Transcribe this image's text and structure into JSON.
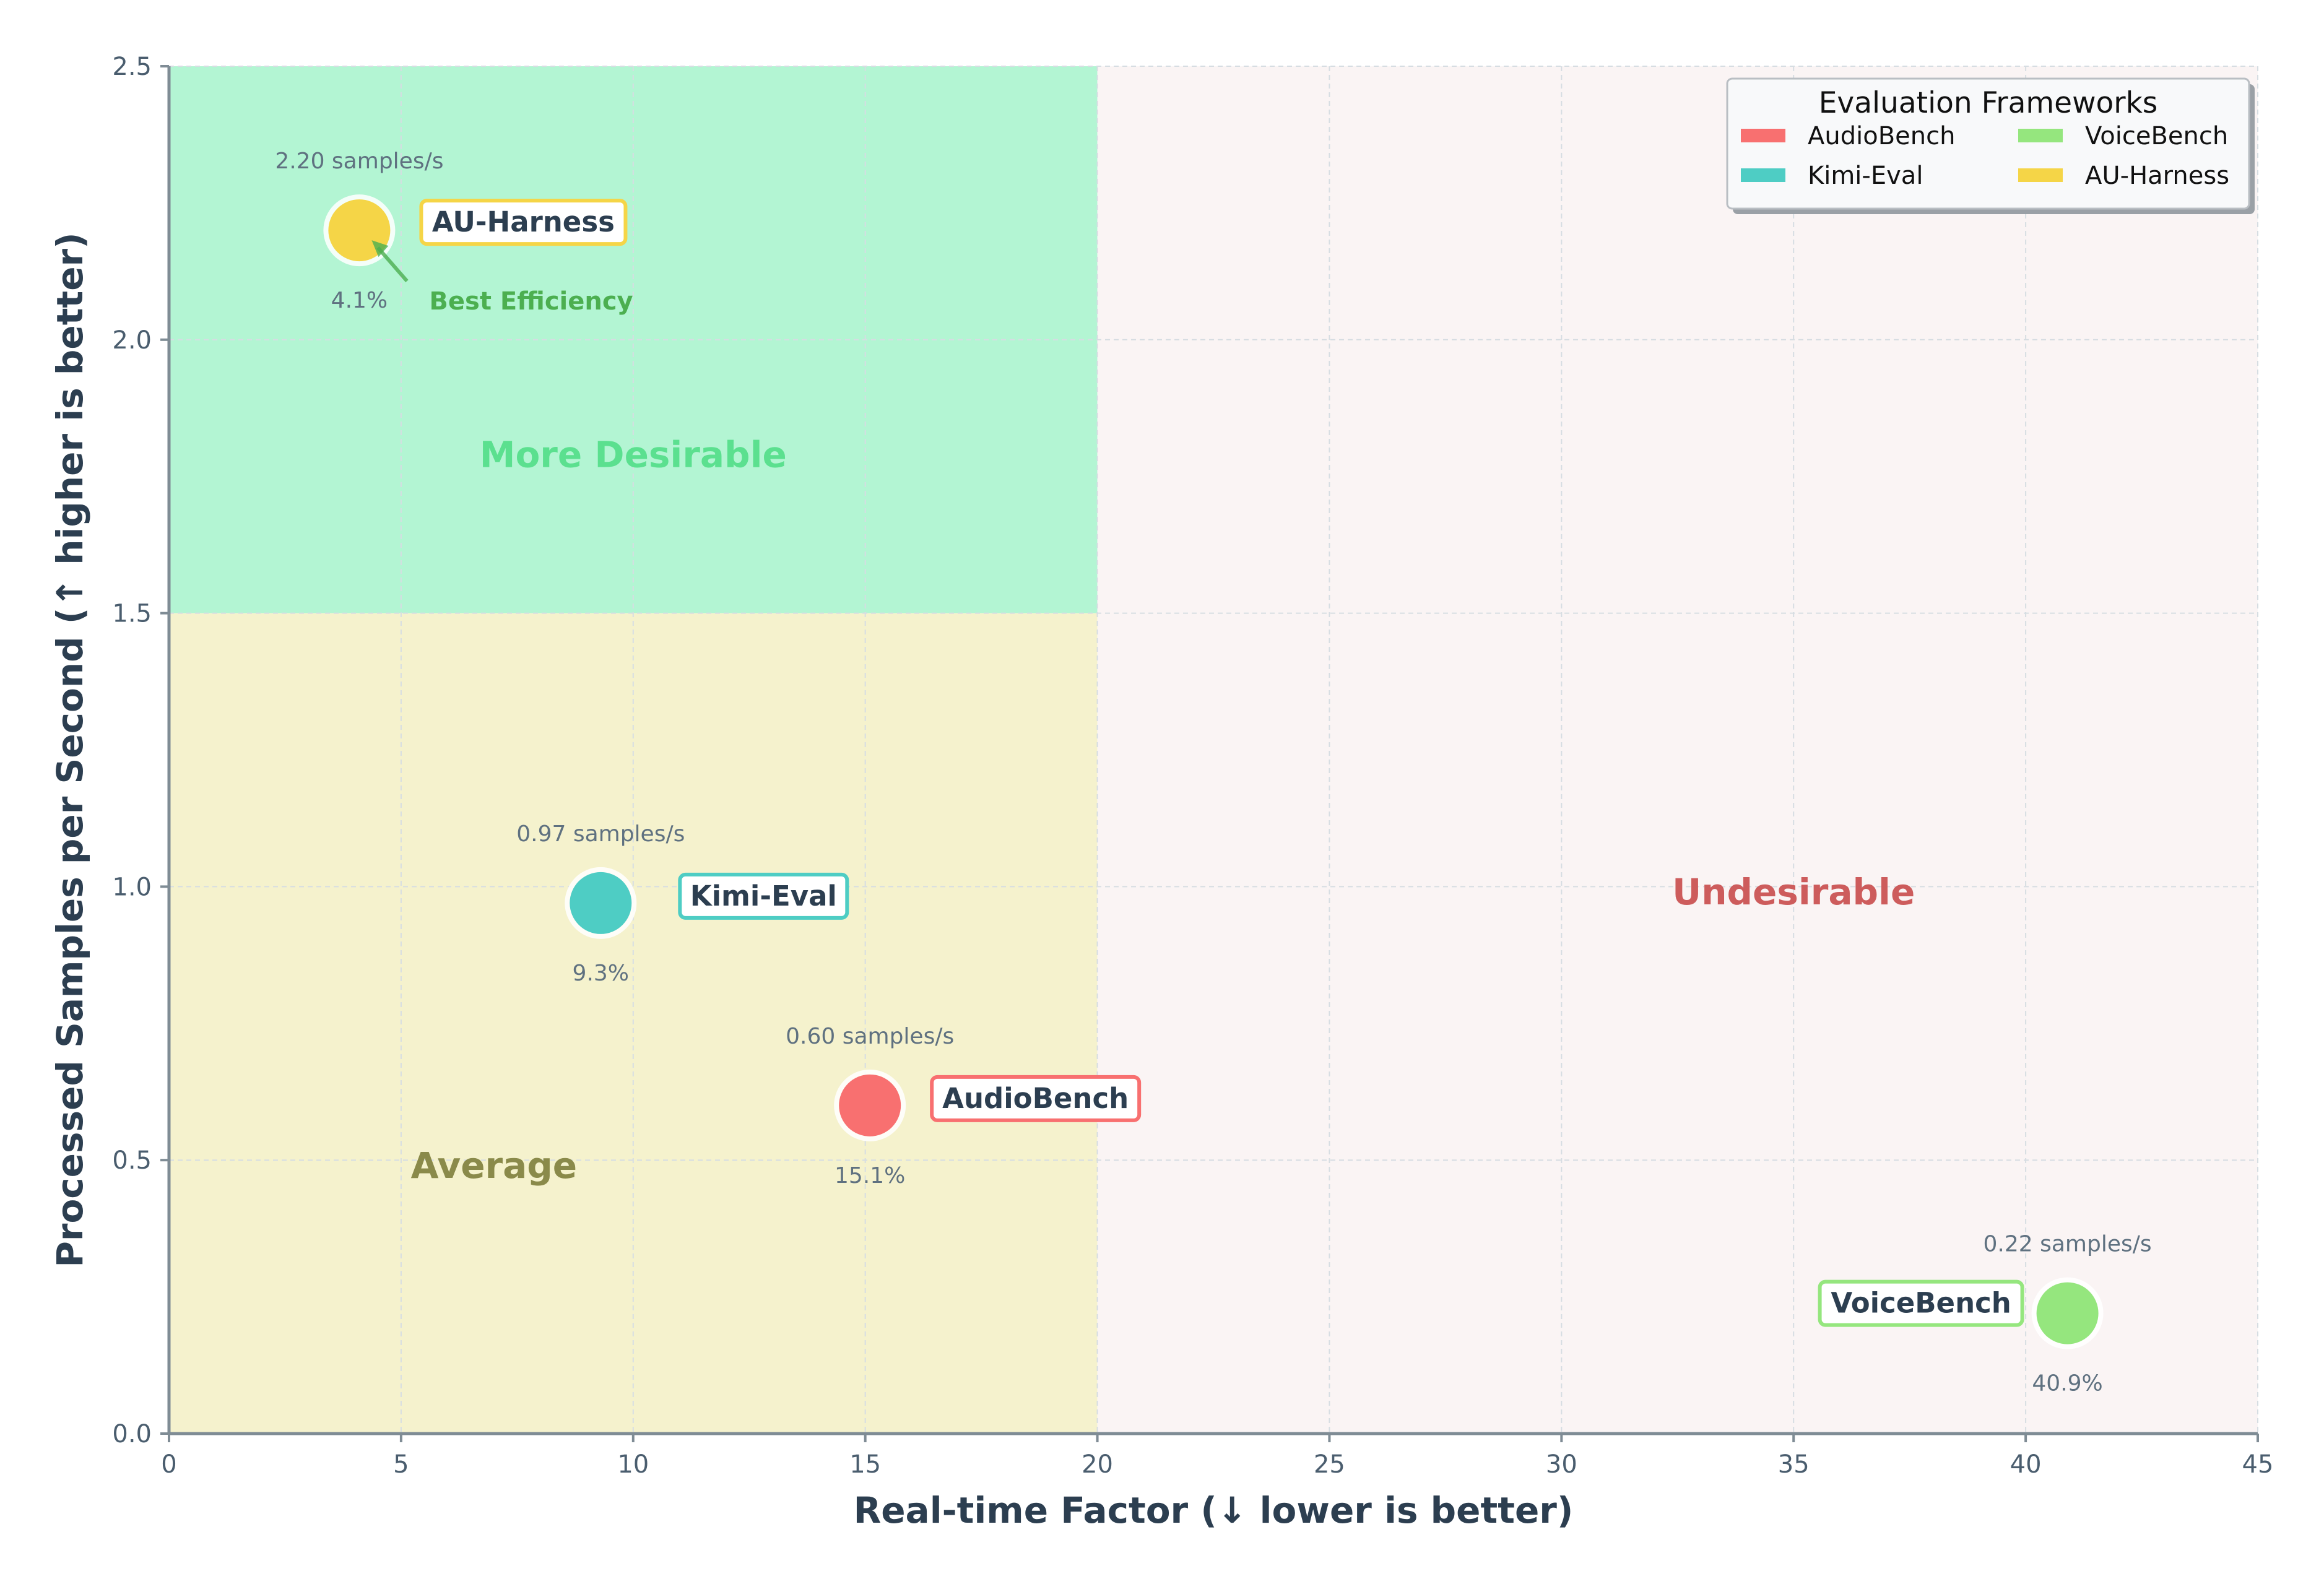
{
  "chart_data": {
    "type": "scatter",
    "xlabel": "Real-time Factor (↓ lower is better)",
    "ylabel": "Processed Samples per Second (↑ higher is better)",
    "xlim": [
      0,
      45
    ],
    "ylim": [
      0,
      2.5
    ],
    "xticks": [
      "0",
      "5",
      "10",
      "15",
      "20",
      "25",
      "30",
      "35",
      "40",
      "45"
    ],
    "yticks": [
      "0.0",
      "0.5",
      "1.0",
      "1.5",
      "2.0",
      "2.5"
    ],
    "grid": true,
    "legend_title": "Evaluation Frameworks",
    "legend_position": "top-right",
    "regions": [
      {
        "label": "More Desirable",
        "x_range": [
          0,
          20
        ],
        "y_range": [
          1.5,
          2.5
        ],
        "color": "#b3f5d3",
        "text_color": "#5be08f"
      },
      {
        "label": "Average",
        "x_range": [
          0,
          20
        ],
        "y_range": [
          0,
          1.5
        ],
        "color": "#f5f2cd",
        "text_color": "#8a8a4a"
      },
      {
        "label": "Undesirable",
        "x_range": [
          20,
          45
        ],
        "y_range": [
          0,
          2.5
        ],
        "color": "#faf4f4",
        "text_color": "#cd5c5c"
      }
    ],
    "series": [
      {
        "name": "AudioBench",
        "x": 15.1,
        "y": 0.6,
        "rate_label": "0.60 samples/s",
        "pct_label": "15.1%",
        "color": "#f87070"
      },
      {
        "name": "Kimi-Eval",
        "x": 9.3,
        "y": 0.97,
        "rate_label": "0.97 samples/s",
        "pct_label": "9.3%",
        "color": "#4ecdc4"
      },
      {
        "name": "VoiceBench",
        "x": 40.9,
        "y": 0.22,
        "rate_label": "0.22 samples/s",
        "pct_label": "40.9%",
        "color": "#95e67e"
      },
      {
        "name": "AU-Harness",
        "x": 4.1,
        "y": 2.2,
        "rate_label": "2.20 samples/s",
        "pct_label": "4.1%",
        "color": "#f5d547"
      }
    ],
    "annotations": [
      {
        "text": "Best Efficiency",
        "target": "AU-Harness",
        "color": "#4caf50"
      }
    ]
  }
}
